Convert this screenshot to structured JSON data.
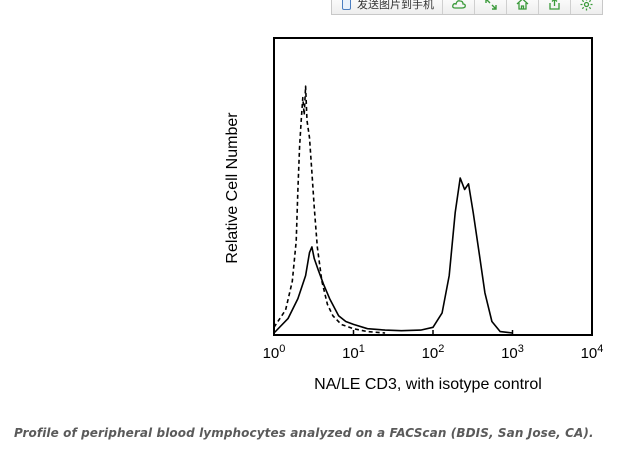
{
  "toolbar": {
    "send_label": "发送图片到手机",
    "buttons": [
      {
        "icon": "cloud-icon"
      },
      {
        "icon": "expand-icon"
      },
      {
        "icon": "home-icon"
      },
      {
        "icon": "share-icon"
      },
      {
        "icon": "settings-icon"
      }
    ],
    "accent": "#3a9a3a"
  },
  "chart_data": {
    "type": "line",
    "title": "",
    "xlabel": "NA/LE CD3, with isotype control",
    "ylabel": "Relative Cell Number",
    "x_scale": "log",
    "xlim": [
      1,
      10000
    ],
    "ylim": [
      0,
      1
    ],
    "x_ticks": [
      1,
      10,
      100,
      1000,
      10000
    ],
    "x_tick_labels": [
      {
        "base": "10",
        "exp": "0"
      },
      {
        "base": "10",
        "exp": "1"
      },
      {
        "base": "10",
        "exp": "2"
      },
      {
        "base": "10",
        "exp": "3"
      },
      {
        "base": "10",
        "exp": "4"
      }
    ],
    "y_ticks_shown": false,
    "grid": false,
    "legend": "none",
    "series": [
      {
        "style": "dashed",
        "points": [
          [
            1.0,
            0.02
          ],
          [
            1.4,
            0.08
          ],
          [
            1.7,
            0.18
          ],
          [
            1.9,
            0.32
          ],
          [
            2.0,
            0.5
          ],
          [
            2.1,
            0.65
          ],
          [
            2.2,
            0.74
          ],
          [
            2.3,
            0.82
          ],
          [
            2.4,
            0.76
          ],
          [
            2.5,
            0.86
          ],
          [
            2.6,
            0.74
          ],
          [
            2.8,
            0.68
          ],
          [
            3.0,
            0.56
          ],
          [
            3.2,
            0.44
          ],
          [
            3.5,
            0.3
          ],
          [
            4.0,
            0.18
          ],
          [
            4.7,
            0.1
          ],
          [
            5.5,
            0.06
          ],
          [
            7.0,
            0.03
          ],
          [
            10.0,
            0.015
          ],
          [
            15.0,
            0.005
          ],
          [
            25.0,
            0.0
          ]
        ]
      },
      {
        "style": "solid",
        "points": [
          [
            1.0,
            0.0
          ],
          [
            1.5,
            0.05
          ],
          [
            2.0,
            0.12
          ],
          [
            2.5,
            0.2
          ],
          [
            2.8,
            0.28
          ],
          [
            3.0,
            0.3
          ],
          [
            3.2,
            0.26
          ],
          [
            3.6,
            0.22
          ],
          [
            4.2,
            0.17
          ],
          [
            5.0,
            0.12
          ],
          [
            6.5,
            0.06
          ],
          [
            8.0,
            0.04
          ],
          [
            10.0,
            0.03
          ],
          [
            15.0,
            0.015
          ],
          [
            25.0,
            0.01
          ],
          [
            40.0,
            0.008
          ],
          [
            70.0,
            0.01
          ],
          [
            100.0,
            0.02
          ],
          [
            130.0,
            0.07
          ],
          [
            160.0,
            0.2
          ],
          [
            190.0,
            0.42
          ],
          [
            220.0,
            0.54
          ],
          [
            250.0,
            0.5
          ],
          [
            280.0,
            0.52
          ],
          [
            320.0,
            0.42
          ],
          [
            380.0,
            0.28
          ],
          [
            450.0,
            0.14
          ],
          [
            550.0,
            0.04
          ],
          [
            700.0,
            0.005
          ],
          [
            1000.0,
            0.0
          ]
        ]
      }
    ]
  },
  "caption": "Profile of peripheral blood lymphocytes analyzed on a FACScan (BDIS, San Jose, CA)."
}
